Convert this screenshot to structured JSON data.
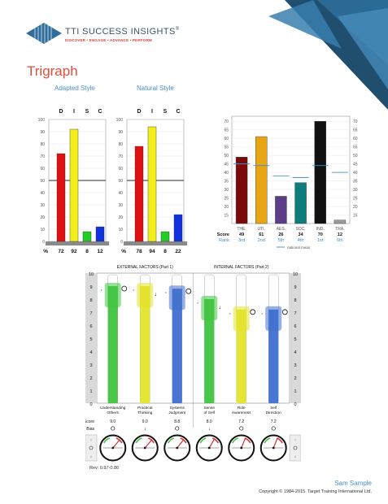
{
  "header": {
    "company_name": "TTI SUCCESS INSIGHTS",
    "registered_mark": "®",
    "tagline": "DISCOVER • ENGAGE • ADVANCE • PERFORM"
  },
  "page_title": "Trigraph",
  "disc": {
    "letters": [
      "D",
      "I",
      "S",
      "C"
    ],
    "y_ticks": [
      "100",
      "90",
      "80",
      "70",
      "60",
      "50",
      "40",
      "30",
      "20",
      "10",
      "0"
    ],
    "percent_label": "%",
    "colors": [
      "#dd1111",
      "#f2ee1c",
      "#22cc22",
      "#1133dd"
    ],
    "adapted": {
      "title": "Adapted Style",
      "values": [
        72,
        92,
        8,
        12
      ]
    },
    "natural": {
      "title": "Natural Style",
      "values": [
        78,
        94,
        8,
        22
      ]
    }
  },
  "motivators": {
    "categories": [
      "THE.",
      "UTI.",
      "AES.",
      "SOC.",
      "IND.",
      "TRA."
    ],
    "scores": [
      49,
      61,
      26,
      34,
      70,
      12
    ],
    "ranks": [
      "3rd",
      "2nd",
      "5th",
      "4th",
      "1st",
      "6th"
    ],
    "national_mean": [
      45,
      44,
      38,
      37,
      44,
      40
    ],
    "colors": [
      "#7a0a0a",
      "#e8a614",
      "#5c3d87",
      "#0d7c7a",
      "#111111",
      "#9a9a9a"
    ],
    "y_ticks": [
      "70",
      "65",
      "60",
      "55",
      "50",
      "45",
      "40",
      "35",
      "30",
      "25",
      "20",
      "15"
    ],
    "score_label": "Score",
    "rank_label": "Rank",
    "legend_label": "national mean"
  },
  "factors": {
    "external_title": "EXTERNAL FACTORS (Part 1)",
    "internal_title": "INTERNAL FACTORS (Part 2)",
    "y_ticks": [
      "10",
      "9",
      "8",
      "7",
      "6",
      "5",
      "4",
      "3",
      "2",
      "1",
      "0"
    ],
    "score_label": "Score",
    "bias_label": "Bias",
    "items": [
      {
        "label": "Understanding Others",
        "score": "9.0",
        "value": 9.0,
        "bias": "o",
        "color": "#3fc43f"
      },
      {
        "label": "Practical Thinking",
        "score": "9.0",
        "value": 9.0,
        "bias": "↓",
        "color": "#e4e42a"
      },
      {
        "label": "Systems Judgment",
        "score": "8.8",
        "value": 8.8,
        "bias": "o",
        "color": "#3f6fd0"
      },
      {
        "label": "Sense of Self",
        "score": "8.0",
        "value": 8.0,
        "bias": "↓",
        "color": "#3fc43f"
      },
      {
        "label": "Role Awareness",
        "score": "7.2",
        "value": 7.2,
        "bias": "o",
        "color": "#e4e42a"
      },
      {
        "label": "Self Direction",
        "score": "7.2",
        "value": 7.2,
        "bias": "o",
        "color": "#3f6fd0"
      }
    ],
    "revision": "Rev: 0.97-0.86"
  },
  "footer": {
    "name": "Sam Sample",
    "copyright": "Copyright © 1984-2015. Target Training International Ltd."
  }
}
